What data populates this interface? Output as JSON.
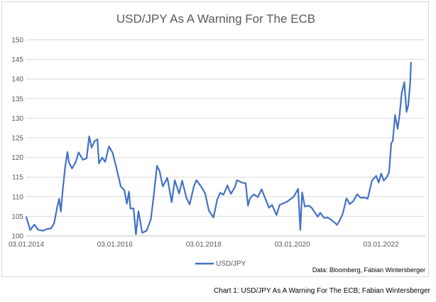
{
  "caption": "Chart 1: USD/JPY As A Warning For The ECB; Fabian Wintersberger",
  "chart_data": {
    "type": "line",
    "title": "USD/JPY As A Warning For The ECB",
    "xlabel": "",
    "ylabel": "",
    "ylim": [
      100,
      150
    ],
    "yticks": [
      "100",
      "105",
      "110",
      "115",
      "120",
      "125",
      "130",
      "135",
      "140",
      "145",
      "150"
    ],
    "xlim": [
      "2014-01-03",
      "2023-01-03"
    ],
    "xticks": [
      {
        "label": "03.01.2014",
        "date": "2014-01-03"
      },
      {
        "label": "03.01.2016",
        "date": "2016-01-03"
      },
      {
        "label": "03.01.2018",
        "date": "2018-01-03"
      },
      {
        "label": "03.01.2020",
        "date": "2020-01-03"
      },
      {
        "label": "03.01.2022",
        "date": "2022-01-03"
      }
    ],
    "grid": true,
    "legend_position": "bottom-left",
    "source_note": "Data: Bloomberg, Fabian Wintersberger",
    "series": [
      {
        "name": "USD/JPY",
        "color": "#4472c4",
        "points": [
          [
            "2014-01-03",
            104.8
          ],
          [
            "2014-02-05",
            101.5
          ],
          [
            "2014-03-10",
            102.9
          ],
          [
            "2014-04-10",
            101.6
          ],
          [
            "2014-05-20",
            101.3
          ],
          [
            "2014-06-25",
            101.8
          ],
          [
            "2014-07-25",
            101.9
          ],
          [
            "2014-08-20",
            103.2
          ],
          [
            "2014-09-15",
            107.4
          ],
          [
            "2014-10-01",
            109.5
          ],
          [
            "2014-10-15",
            106.2
          ],
          [
            "2014-10-31",
            112.0
          ],
          [
            "2014-11-20",
            117.8
          ],
          [
            "2014-12-08",
            121.4
          ],
          [
            "2014-12-20",
            118.8
          ],
          [
            "2015-01-15",
            117.2
          ],
          [
            "2015-02-15",
            118.9
          ],
          [
            "2015-03-10",
            121.3
          ],
          [
            "2015-04-15",
            119.4
          ],
          [
            "2015-05-15",
            119.8
          ],
          [
            "2015-06-05",
            125.4
          ],
          [
            "2015-06-25",
            122.5
          ],
          [
            "2015-07-20",
            124.2
          ],
          [
            "2015-08-12",
            124.6
          ],
          [
            "2015-08-25",
            118.5
          ],
          [
            "2015-09-20",
            120.0
          ],
          [
            "2015-10-15",
            118.9
          ],
          [
            "2015-11-15",
            122.8
          ],
          [
            "2015-12-15",
            121.2
          ],
          [
            "2016-01-15",
            117.4
          ],
          [
            "2016-02-10",
            114.0
          ],
          [
            "2016-02-20",
            112.6
          ],
          [
            "2016-03-20",
            111.7
          ],
          [
            "2016-04-10",
            108.2
          ],
          [
            "2016-04-28",
            111.3
          ],
          [
            "2016-05-10",
            107.0
          ],
          [
            "2016-06-05",
            107.0
          ],
          [
            "2016-06-24",
            100.4
          ],
          [
            "2016-07-15",
            106.3
          ],
          [
            "2016-08-15",
            100.8
          ],
          [
            "2016-09-20",
            101.3
          ],
          [
            "2016-10-25",
            104.2
          ],
          [
            "2016-11-15",
            109.5
          ],
          [
            "2016-12-15",
            117.9
          ],
          [
            "2017-01-05",
            116.5
          ],
          [
            "2017-02-01",
            112.6
          ],
          [
            "2017-03-10",
            114.8
          ],
          [
            "2017-04-15",
            108.6
          ],
          [
            "2017-05-10",
            114.2
          ],
          [
            "2017-06-15",
            110.8
          ],
          [
            "2017-07-10",
            114.1
          ],
          [
            "2017-08-15",
            109.6
          ],
          [
            "2017-09-10",
            108.0
          ],
          [
            "2017-10-15",
            112.7
          ],
          [
            "2017-11-05",
            114.2
          ],
          [
            "2017-12-15",
            112.5
          ],
          [
            "2018-01-15",
            110.9
          ],
          [
            "2018-02-15",
            106.5
          ],
          [
            "2018-03-25",
            104.7
          ],
          [
            "2018-04-25",
            109.3
          ],
          [
            "2018-05-20",
            111.0
          ],
          [
            "2018-06-15",
            110.5
          ],
          [
            "2018-07-18",
            112.9
          ],
          [
            "2018-08-15",
            110.7
          ],
          [
            "2018-09-20",
            112.6
          ],
          [
            "2018-10-04",
            114.2
          ],
          [
            "2018-11-15",
            113.6
          ],
          [
            "2018-12-15",
            113.4
          ],
          [
            "2019-01-03",
            107.7
          ],
          [
            "2019-01-20",
            109.6
          ],
          [
            "2019-02-20",
            110.6
          ],
          [
            "2019-03-25",
            109.9
          ],
          [
            "2019-04-25",
            111.9
          ],
          [
            "2019-05-20",
            110.0
          ],
          [
            "2019-06-25",
            107.2
          ],
          [
            "2019-07-20",
            107.9
          ],
          [
            "2019-08-26",
            105.3
          ],
          [
            "2019-09-20",
            107.9
          ],
          [
            "2019-10-20",
            108.3
          ],
          [
            "2019-11-20",
            108.7
          ],
          [
            "2019-12-20",
            109.4
          ],
          [
            "2020-01-15",
            110.0
          ],
          [
            "2020-02-20",
            112.0
          ],
          [
            "2020-03-09",
            101.5
          ],
          [
            "2020-03-24",
            111.1
          ],
          [
            "2020-04-15",
            107.5
          ],
          [
            "2020-05-20",
            107.7
          ],
          [
            "2020-06-10",
            107.2
          ],
          [
            "2020-07-31",
            104.9
          ],
          [
            "2020-08-20",
            105.9
          ],
          [
            "2020-09-20",
            104.6
          ],
          [
            "2020-10-20",
            104.7
          ],
          [
            "2020-11-15",
            104.2
          ],
          [
            "2020-12-20",
            103.3
          ],
          [
            "2021-01-06",
            102.8
          ],
          [
            "2021-01-25",
            103.8
          ],
          [
            "2021-02-20",
            105.5
          ],
          [
            "2021-03-25",
            109.6
          ],
          [
            "2021-04-20",
            108.1
          ],
          [
            "2021-05-20",
            108.9
          ],
          [
            "2021-06-20",
            110.6
          ],
          [
            "2021-07-20",
            109.7
          ],
          [
            "2021-08-20",
            109.8
          ],
          [
            "2021-09-15",
            109.5
          ],
          [
            "2021-10-20",
            114.1
          ],
          [
            "2021-11-24",
            115.3
          ],
          [
            "2021-12-15",
            113.6
          ],
          [
            "2022-01-04",
            115.9
          ],
          [
            "2022-01-25",
            114.1
          ],
          [
            "2022-02-20",
            115.0
          ],
          [
            "2022-03-10",
            116.2
          ],
          [
            "2022-03-28",
            123.6
          ],
          [
            "2022-04-10",
            124.3
          ],
          [
            "2022-04-28",
            130.8
          ],
          [
            "2022-05-20",
            127.3
          ],
          [
            "2022-06-05",
            131.0
          ],
          [
            "2022-06-22",
            136.4
          ],
          [
            "2022-07-14",
            139.2
          ],
          [
            "2022-08-01",
            131.6
          ],
          [
            "2022-08-15",
            133.3
          ],
          [
            "2022-08-31",
            138.9
          ],
          [
            "2022-09-07",
            144.2
          ]
        ]
      }
    ]
  }
}
